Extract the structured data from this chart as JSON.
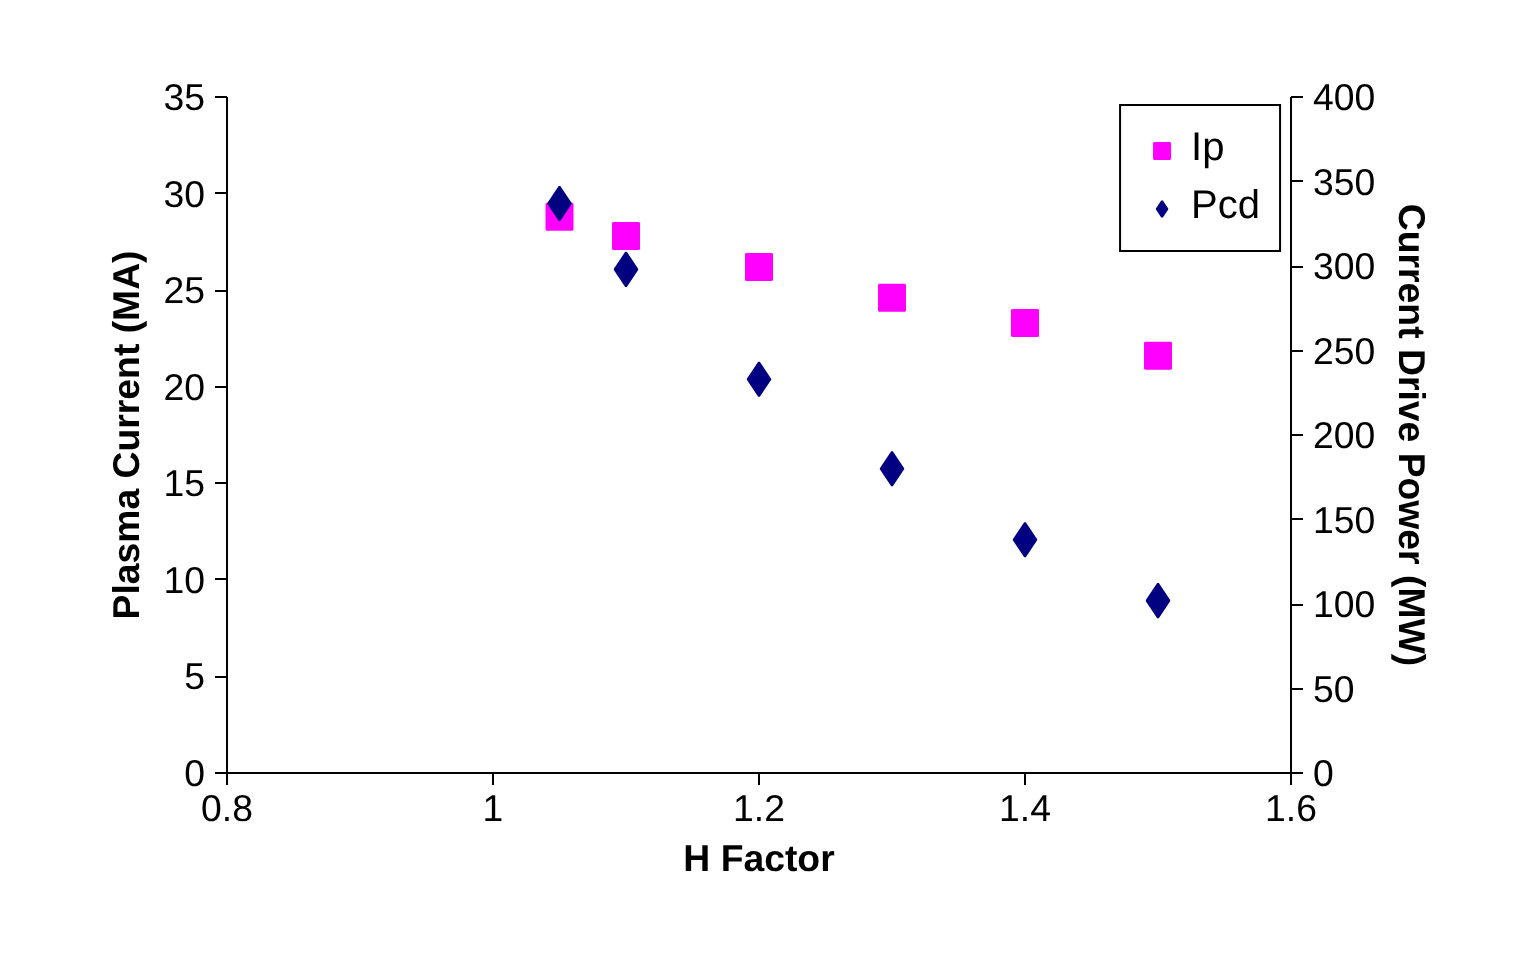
{
  "chart_data": {
    "type": "scatter",
    "xlabel": "H Factor",
    "ylabel": "Plasma Current (MA)",
    "y2label": "Current Drive Power (MW)",
    "x": [
      1.05,
      1.1,
      1.2,
      1.3,
      1.4,
      1.5
    ],
    "series": [
      {
        "name": "Ip",
        "color": "#ff00ff",
        "marker": "square",
        "values": [
          28.8,
          27.8,
          26.2,
          24.6,
          23.3,
          21.6
        ]
      },
      {
        "name": "Pcd",
        "color": "#000080",
        "marker": "diamond",
        "axis": "y2",
        "values": [
          337,
          298,
          233,
          180,
          138,
          102
        ]
      }
    ],
    "xlim": [
      0.8,
      1.6
    ],
    "xticks": [
      0.8,
      1,
      1.2,
      1.4,
      1.6
    ],
    "ylim": [
      0,
      35
    ],
    "yticks": [
      0,
      5,
      10,
      15,
      20,
      25,
      30,
      35
    ],
    "y2lim": [
      0,
      400
    ],
    "y2ticks": [
      0,
      50,
      100,
      150,
      200,
      250,
      300,
      350,
      400
    ],
    "legend": "top right"
  }
}
